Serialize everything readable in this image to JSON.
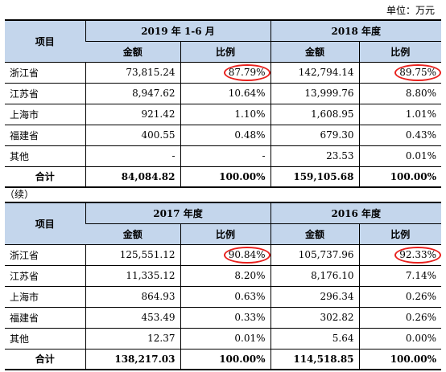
{
  "unit_label": "单位：万元",
  "continued_label": "（续）",
  "table1": {
    "item_header": "项目",
    "period1": "2019 年 1-6 月",
    "period2": "2018 年度",
    "amount_header": "金额",
    "ratio_header": "比例",
    "rows": [
      {
        "name": "浙江省",
        "a1": "73,815.24",
        "r1": "87.79%",
        "a2": "142,794.14",
        "r2": "89.75%"
      },
      {
        "name": "江苏省",
        "a1": "8,947.62",
        "r1": "10.64%",
        "a2": "13,999.76",
        "r2": "8.80%"
      },
      {
        "name": "上海市",
        "a1": "921.42",
        "r1": "1.10%",
        "a2": "1,608.95",
        "r2": "1.01%"
      },
      {
        "name": "福建省",
        "a1": "400.55",
        "r1": "0.48%",
        "a2": "679.30",
        "r2": "0.43%"
      },
      {
        "name": "其他",
        "a1": "-",
        "r1": "-",
        "a2": "23.53",
        "r2": "0.01%"
      }
    ],
    "total": {
      "name": "合计",
      "a1": "84,084.82",
      "r1": "100.00%",
      "a2": "159,105.68",
      "r2": "100.00%"
    }
  },
  "table2": {
    "item_header": "项目",
    "period1": "2017 年度",
    "period2": "2016 年度",
    "amount_header": "金额",
    "ratio_header": "比例",
    "rows": [
      {
        "name": "浙江省",
        "a1": "125,551.12",
        "r1": "90.84%",
        "a2": "105,737.96",
        "r2": "92.33%"
      },
      {
        "name": "江苏省",
        "a1": "11,335.12",
        "r1": "8.20%",
        "a2": "8,176.10",
        "r2": "7.14%"
      },
      {
        "name": "上海市",
        "a1": "864.93",
        "r1": "0.63%",
        "a2": "296.34",
        "r2": "0.26%"
      },
      {
        "name": "福建省",
        "a1": "453.49",
        "r1": "0.33%",
        "a2": "302.82",
        "r2": "0.26%"
      },
      {
        "name": "其他",
        "a1": "12.37",
        "r1": "0.01%",
        "a2": "5.64",
        "r2": "0.00%"
      }
    ],
    "total": {
      "name": "合计",
      "a1": "138,217.03",
      "r1": "100.00%",
      "a2": "114,518.85",
      "r2": "100.00%"
    }
  },
  "highlight_color": "#e8211e",
  "header_bg": "#c4d6ec"
}
